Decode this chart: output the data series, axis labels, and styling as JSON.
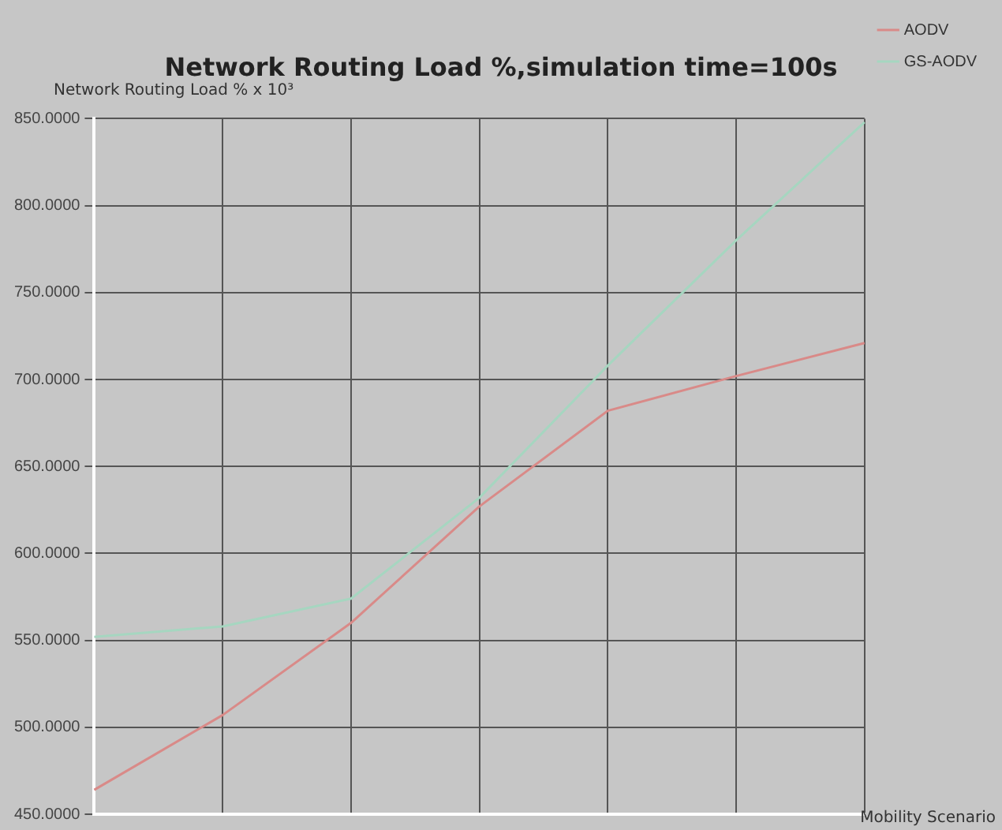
{
  "chart_data": {
    "type": "line",
    "title": "Network Routing Load %,simulation time=100s",
    "ylabel": "Network Routing Load % x 10³",
    "xlabel": "Mobility Scenario",
    "categories": [
      null,
      null,
      null,
      null,
      null,
      null,
      null
    ],
    "series": [
      {
        "name": "AODV",
        "color": "#d98a88",
        "values": [
          464,
          507,
          560,
          627,
          682,
          702,
          721
        ]
      },
      {
        "name": "GS-AODV",
        "color": "#a6d6c0",
        "values": [
          552,
          558,
          574,
          632,
          708,
          780,
          848
        ]
      }
    ],
    "ylim": [
      450,
      850
    ],
    "yticks": [
      {
        "value": 450,
        "label": "450.0000"
      },
      {
        "value": 500,
        "label": "500.0000"
      },
      {
        "value": 550,
        "label": "550.0000"
      },
      {
        "value": 600,
        "label": "600.0000"
      },
      {
        "value": 650,
        "label": "650.0000"
      },
      {
        "value": 700,
        "label": "700.0000"
      },
      {
        "value": 750,
        "label": "750.0000"
      },
      {
        "value": 800,
        "label": "800.0000"
      },
      {
        "value": 850,
        "label": "850.0000"
      }
    ],
    "grid": true,
    "legend": "top right",
    "marker": "none",
    "line_style": "solid",
    "tick_labels": "y"
  }
}
